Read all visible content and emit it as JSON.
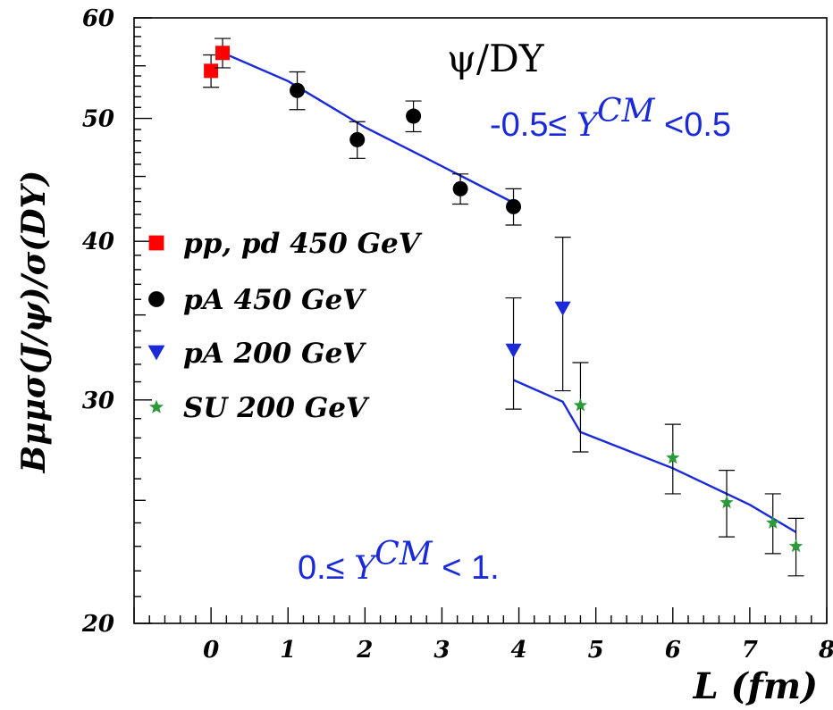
{
  "chart_data": {
    "type": "scatter",
    "title": "ψ/DY",
    "xlabel": "L (fm)",
    "ylabel": "Bμμσ(J/ψ)/σ(DY)",
    "xlim": [
      -1,
      8
    ],
    "ylim": [
      20,
      60
    ],
    "yscale": "log",
    "x_ticks": [
      0,
      1,
      2,
      3,
      4,
      5,
      6,
      7,
      8
    ],
    "y_ticks": [
      20,
      30,
      40,
      50,
      60
    ],
    "grid": false,
    "legend_position": "left",
    "annotations": [
      "-0.5≤ Y^CM <0.5",
      "0.≤ Y^CM < 1."
    ],
    "series": [
      {
        "name": "pp, pd 450 GeV",
        "marker": "square",
        "color": "#ff0000",
        "points": [
          {
            "x": 0.0,
            "y": 54.5,
            "err": 1.6
          },
          {
            "x": 0.15,
            "y": 56.3,
            "err": 1.5
          }
        ]
      },
      {
        "name": "pA 450 GeV",
        "marker": "circle",
        "color": "#000000",
        "points": [
          {
            "x": 1.12,
            "y": 52.6,
            "err": 1.8
          },
          {
            "x": 1.9,
            "y": 48.1,
            "err": 1.6
          },
          {
            "x": 2.63,
            "y": 50.2,
            "err": 1.4
          },
          {
            "x": 3.24,
            "y": 44.0,
            "err": 1.2
          },
          {
            "x": 3.93,
            "y": 42.6,
            "err": 1.4
          }
        ]
      },
      {
        "name": "pA 200 GeV",
        "marker": "triangle-down",
        "color": "#1a2ad6",
        "points": [
          {
            "x": 3.93,
            "y": 32.8,
            "err": 3.3
          },
          {
            "x": 4.57,
            "y": 35.4,
            "err": 4.9
          }
        ]
      },
      {
        "name": "SU 200 GeV",
        "marker": "star",
        "color": "#2b9a38",
        "points": [
          {
            "x": 4.8,
            "y": 29.7,
            "err": 2.4
          },
          {
            "x": 6.0,
            "y": 27.0,
            "err": 1.7
          },
          {
            "x": 6.7,
            "y": 24.9,
            "err": 1.5
          },
          {
            "x": 7.3,
            "y": 24.0,
            "err": 1.3
          },
          {
            "x": 7.6,
            "y": 23.0,
            "err": 1.2
          }
        ]
      }
    ],
    "fit_lines": [
      {
        "color": "#1a2ad6",
        "points": [
          [
            0.1,
            56.5
          ],
          [
            1.0,
            53.5
          ],
          [
            2.0,
            49.2
          ],
          [
            2.8,
            46.5
          ],
          [
            3.93,
            42.9
          ]
        ]
      },
      {
        "color": "#1a2ad6",
        "points": [
          [
            3.93,
            31.1
          ],
          [
            4.57,
            29.9
          ],
          [
            4.8,
            28.3
          ],
          [
            6.0,
            26.5
          ],
          [
            7.0,
            24.8
          ],
          [
            7.6,
            23.6
          ]
        ]
      }
    ]
  }
}
